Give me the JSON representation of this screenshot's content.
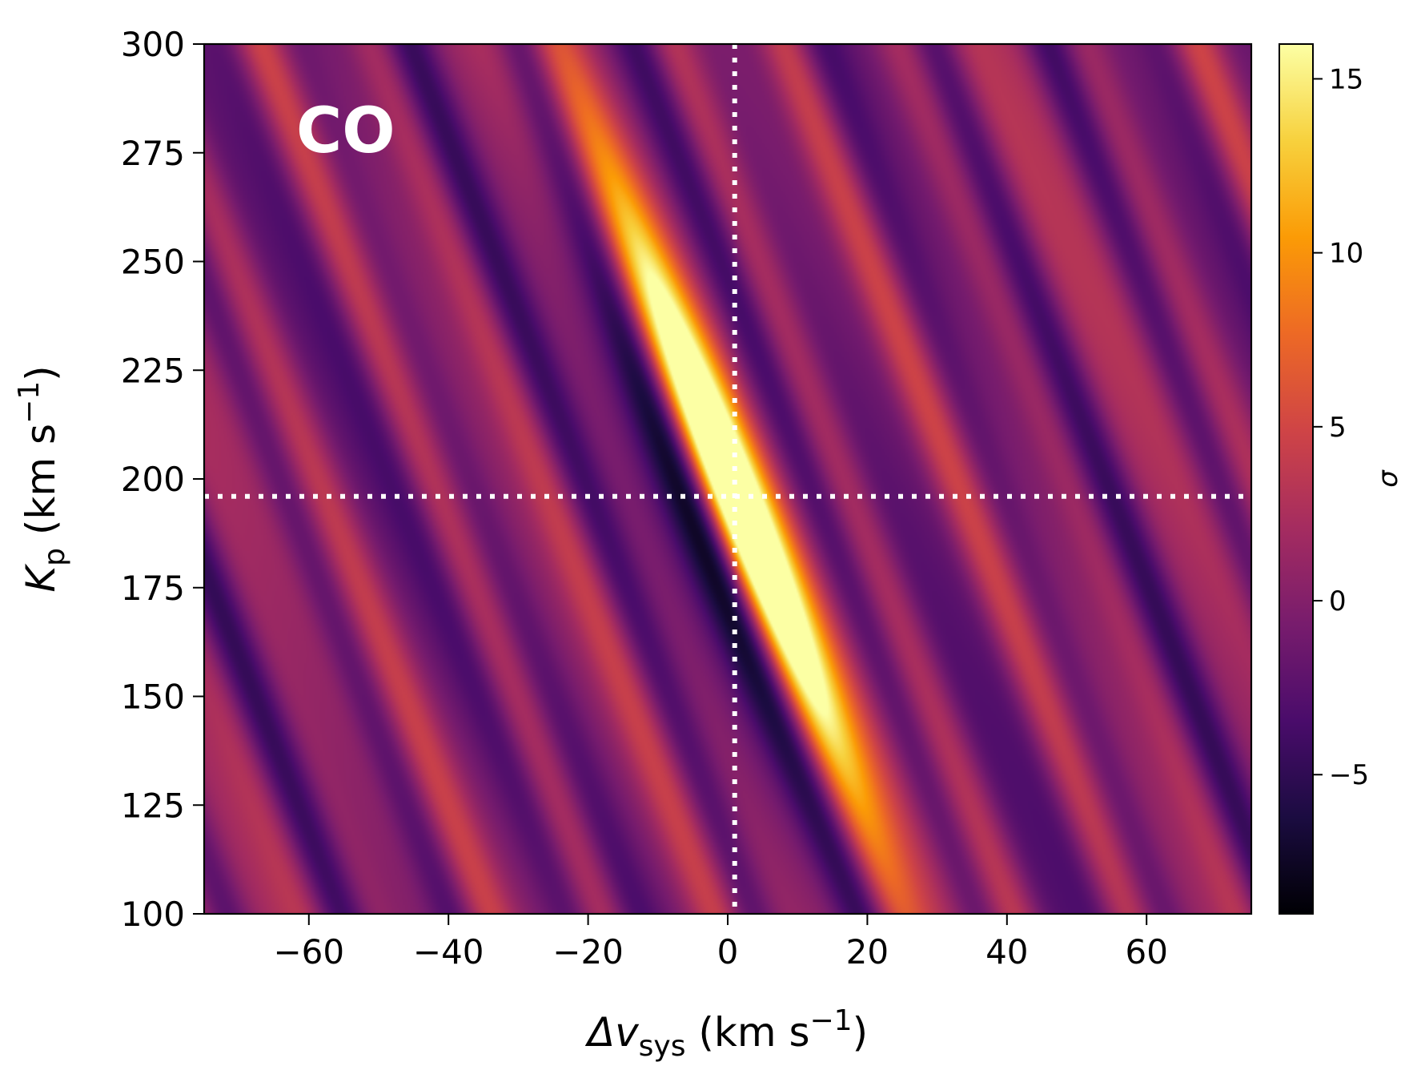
{
  "chart_data": {
    "type": "heatmap",
    "title": "",
    "annotation": "CO",
    "xlabel": {
      "base": "Δv",
      "sub": "sys",
      "unit": " (km s",
      "sup": "−1",
      "close": ")"
    },
    "ylabel": {
      "base": "K",
      "sub": "p",
      "unit": " (km s",
      "sup": "−1",
      "close": ")"
    },
    "xlim": [
      -75,
      75
    ],
    "ylim": [
      100,
      300
    ],
    "xticks": [
      {
        "value": -60,
        "label": "−60"
      },
      {
        "value": -40,
        "label": "−40"
      },
      {
        "value": -20,
        "label": "−20"
      },
      {
        "value": 0,
        "label": "0"
      },
      {
        "value": 20,
        "label": "20"
      },
      {
        "value": 40,
        "label": "40"
      },
      {
        "value": 60,
        "label": "60"
      }
    ],
    "yticks": [
      {
        "value": 100,
        "label": "100"
      },
      {
        "value": 125,
        "label": "125"
      },
      {
        "value": 150,
        "label": "150"
      },
      {
        "value": 175,
        "label": "175"
      },
      {
        "value": 200,
        "label": "200"
      },
      {
        "value": 225,
        "label": "225"
      },
      {
        "value": 250,
        "label": "250"
      },
      {
        "value": 275,
        "label": "275"
      },
      {
        "value": 300,
        "label": "300"
      }
    ],
    "colormap": "inferno",
    "colorbar": {
      "label": "σ",
      "range": [
        -9,
        16
      ],
      "ticks": [
        {
          "value": -5,
          "label": "−5"
        },
        {
          "value": 0,
          "label": "0"
        },
        {
          "value": 5,
          "label": "5"
        },
        {
          "value": 10,
          "label": "10"
        },
        {
          "value": 15,
          "label": "15"
        }
      ]
    },
    "peak": {
      "dv": 1,
      "kp": 196,
      "sigma": 16
    },
    "reference_lines": {
      "dv": 1,
      "kp": 196,
      "style": "dotted",
      "color": "#ffffff"
    },
    "colormap_stops": [
      "#000004",
      "#1b0c41",
      "#4a0c6b",
      "#781c6d",
      "#a52c60",
      "#cf4446",
      "#ed6925",
      "#fb9b06",
      "#f7d13d",
      "#fcffa4"
    ]
  }
}
